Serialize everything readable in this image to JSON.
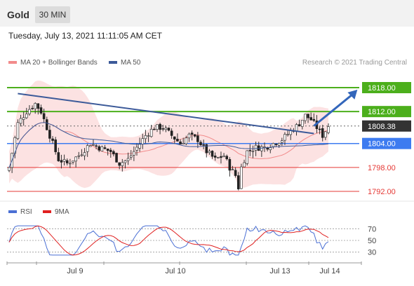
{
  "header": {
    "instrument": "Gold",
    "timeframe": "30 MIN"
  },
  "timestamp": "Tuesday, July 13, 2021 11:11:05 AM CET",
  "legend": {
    "ma20": {
      "label": "MA 20 + Bollinger Bands",
      "color": "#f28b8b"
    },
    "ma50": {
      "label": "MA 50",
      "color": "#3c5a99"
    },
    "rsi": {
      "label": "RSI",
      "color": "#4a6fd4"
    },
    "ma9": {
      "label": "9MA",
      "color": "#e02020"
    }
  },
  "copyright": "Research © 2021 Trading Central",
  "chart_data": {
    "type": "candlestick",
    "instrument": "Gold",
    "timeframe": "30 MIN",
    "x_labels": [
      "Jul 9",
      "Jul 10",
      "Jul 13",
      "Jul 14"
    ],
    "price_range": [
      1790,
      1820
    ],
    "current_price": 1808.38,
    "levels": [
      {
        "value": 1818.0,
        "label": "1818.00",
        "kind": "resistance",
        "color": "#4caf1c"
      },
      {
        "value": 1812.0,
        "label": "1812.00",
        "kind": "resistance",
        "color": "#4caf1c"
      },
      {
        "value": 1808.38,
        "label": "1808.38",
        "kind": "current",
        "color": "#333333"
      },
      {
        "value": 1804.0,
        "label": "1804.00",
        "kind": "pivot",
        "color": "#3d7bf0"
      },
      {
        "value": 1798.0,
        "label": "1798.00",
        "kind": "support",
        "color": "#e53935"
      },
      {
        "value": 1792.0,
        "label": "1792.00",
        "kind": "support",
        "color": "#e53935"
      }
    ],
    "trendline": {
      "from": {
        "bar": 3,
        "price": 1816.5
      },
      "to": {
        "bar": 105,
        "price": 1806.5
      }
    },
    "forecast_arrow": {
      "from": {
        "bar": 105,
        "price": 1808.4
      },
      "to": {
        "bar": 120,
        "price": 1817.5
      }
    },
    "rsi": {
      "levels": [
        70,
        50,
        30
      ],
      "range": [
        20,
        80
      ]
    }
  }
}
